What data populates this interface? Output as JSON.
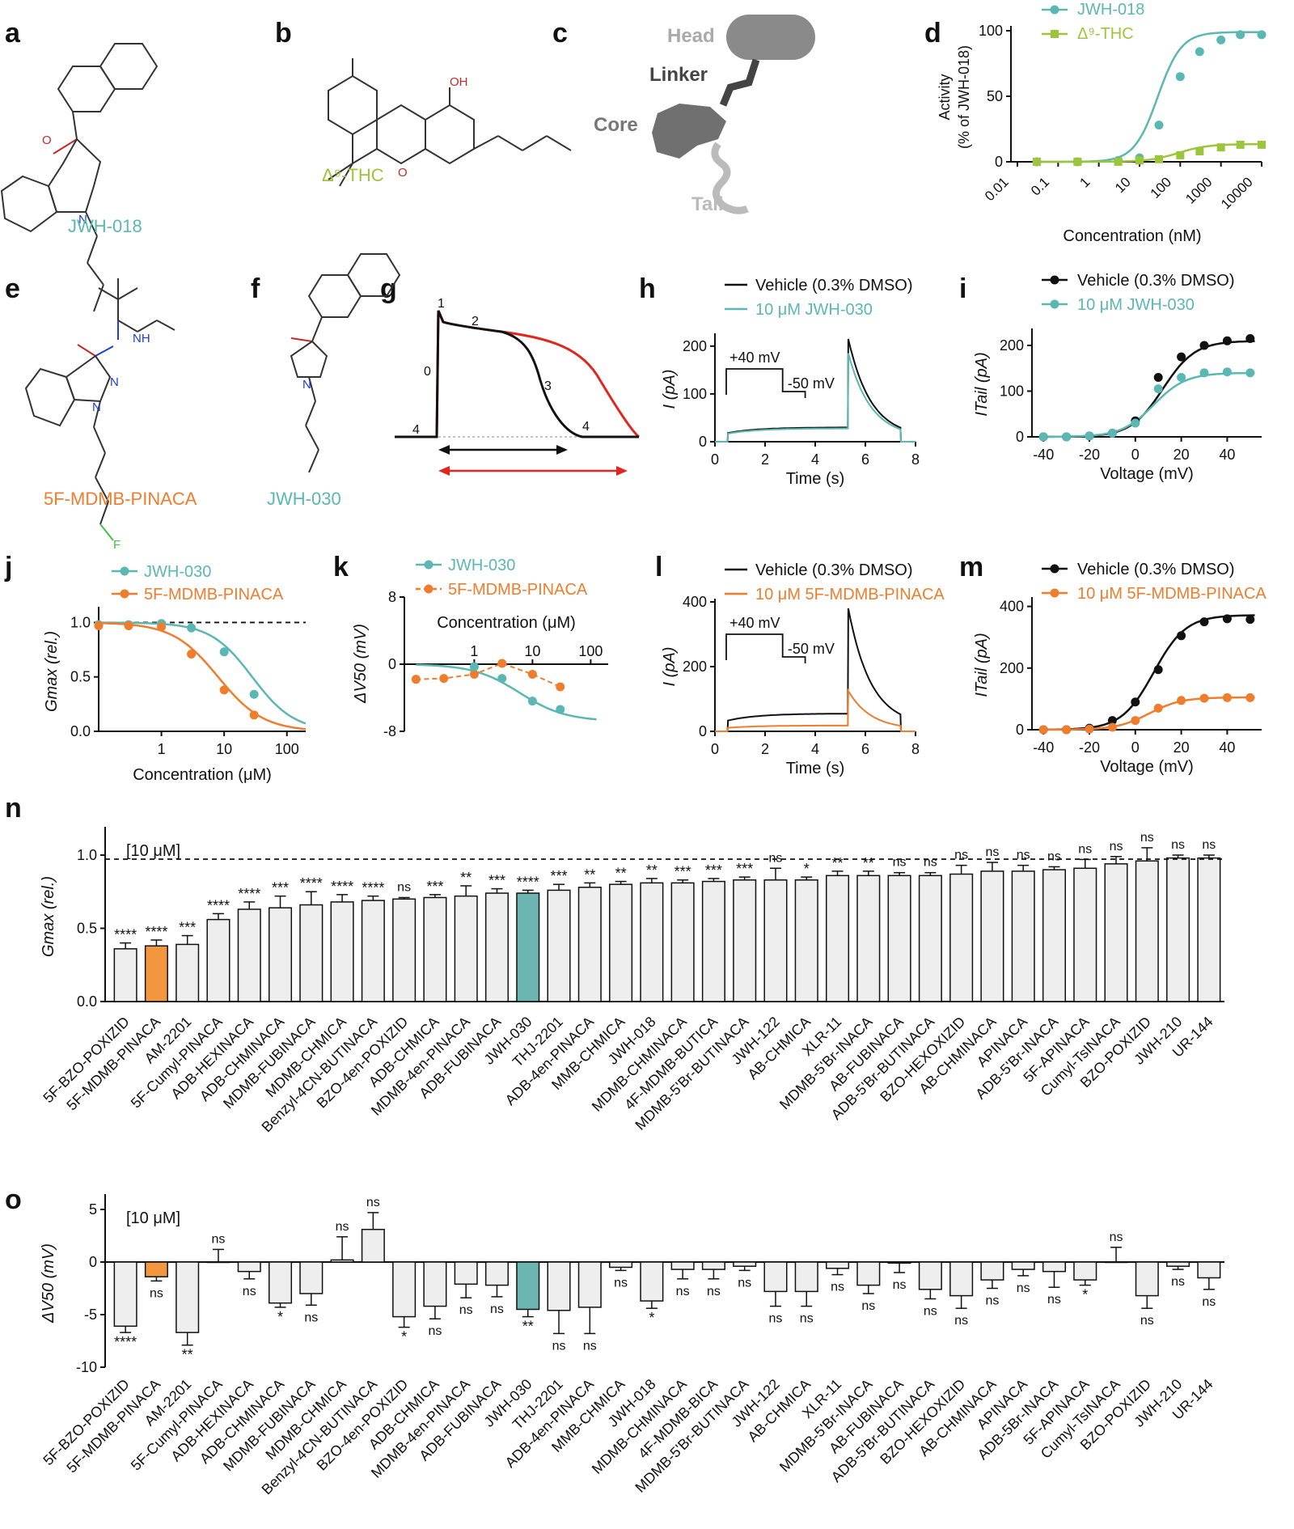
{
  "colors": {
    "teal": "#5bb7b2",
    "orange": "#ef7d2e",
    "green": "#9dc53b",
    "black": "#111111",
    "red": "#e0261f",
    "bar_gray": "#eeeeee",
    "bar_teal": "#6cb5b0",
    "bar_orange": "#f2973f"
  },
  "panel_letters": {
    "a": "a",
    "b": "b",
    "c": "c",
    "d": "d",
    "e": "e",
    "f": "f",
    "g": "g",
    "h": "h",
    "i": "i",
    "j": "j",
    "k": "k",
    "l": "l",
    "m": "m",
    "n": "n",
    "o": "o"
  },
  "structures": {
    "a_label": "JWH-018",
    "b_label": "Δ⁹-THC",
    "b_oh": "OH",
    "c_head": "Head",
    "c_linker": "Linker",
    "c_core": "Core",
    "c_tail": "Tail",
    "e_label": "5F-MDMB-PINACA",
    "e_nh": "NH",
    "e_n1": "N",
    "e_n2": "N",
    "e_f": "F",
    "f_label": "JWH-030",
    "n_atom": "N"
  },
  "charts": {
    "d": {
      "type": "line",
      "ylabel1": "Activity",
      "ylabel2": "(% of JWH-018)",
      "xlabel": "Concentration (nM)",
      "xticks": [
        "0.01",
        "0.1",
        "1",
        "10",
        "100",
        "1000",
        "10000"
      ],
      "yticks": [
        "0",
        "50",
        "100"
      ],
      "series": [
        {
          "name": "JWH-018",
          "x": [
            0.03,
            0.3,
            3,
            10,
            30,
            100,
            300,
            1000,
            3000,
            10000
          ],
          "y": [
            0,
            0,
            1,
            3,
            28,
            65,
            84,
            93,
            97,
            97
          ]
        },
        {
          "name": "Δ⁹-THC",
          "x": [
            0.03,
            0.3,
            3,
            10,
            30,
            100,
            300,
            1000,
            3000,
            10000
          ],
          "y": [
            0,
            0,
            0,
            1,
            2,
            5,
            8,
            11,
            13,
            13
          ]
        }
      ]
    },
    "g": {
      "labels": [
        "0",
        "1",
        "2",
        "3",
        "4",
        "4"
      ]
    },
    "h": {
      "type": "line",
      "ylabel": "I (pA)",
      "xlabel": "Time (s)",
      "xticks": [
        "0",
        "2",
        "4",
        "6",
        "8"
      ],
      "yticks": [
        "0",
        "100",
        "200"
      ],
      "legend": [
        "Vehicle (0.3% DMSO)",
        "10 μM JWH-030"
      ],
      "protocol": [
        "+40 mV",
        "-50 mV"
      ]
    },
    "i": {
      "type": "line",
      "ylabel": "ITail (pA)",
      "xlabel": "Voltage (mV)",
      "xticks": [
        "-40",
        "-20",
        "0",
        "20",
        "40"
      ],
      "yticks": [
        "0",
        "100",
        "200"
      ],
      "series": [
        {
          "name": "Vehicle (0.3% DMSO)",
          "x": [
            -40,
            -30,
            -20,
            -10,
            0,
            10,
            20,
            30,
            40,
            50
          ],
          "y": [
            0,
            0,
            2,
            8,
            35,
            130,
            175,
            200,
            210,
            215
          ]
        },
        {
          "name": "10 μM JWH-030",
          "x": [
            -40,
            -30,
            -20,
            -10,
            0,
            10,
            20,
            30,
            40,
            50
          ],
          "y": [
            0,
            0,
            2,
            8,
            30,
            105,
            130,
            140,
            142,
            140
          ]
        }
      ]
    },
    "j": {
      "type": "line",
      "ylabel": "Gmax (rel.)",
      "xlabel": "Concentration (μM)",
      "xticks": [
        "1",
        "10",
        "100"
      ],
      "yticks": [
        "0.0",
        "0.5",
        "1.0"
      ],
      "series": [
        {
          "name": "JWH-030",
          "x": [
            0.1,
            0.3,
            1,
            3,
            10,
            30
          ],
          "y": [
            0.98,
            0.98,
            0.99,
            0.95,
            0.73,
            0.34
          ]
        },
        {
          "name": "5F-MDMB-PINACA",
          "x": [
            0.1,
            0.3,
            1,
            3,
            10,
            30
          ],
          "y": [
            0.97,
            0.97,
            0.96,
            0.71,
            0.38,
            0.15
          ]
        }
      ]
    },
    "k": {
      "type": "line",
      "ylabel": "ΔV50 (mV)",
      "xlabel": "Concentration (μM)",
      "xticks": [
        "1",
        "10",
        "100"
      ],
      "yticks": [
        "8",
        "0",
        "-8"
      ],
      "series": [
        {
          "name": "JWH-030",
          "x": [
            1,
            3,
            10,
            30
          ],
          "y": [
            -0.3,
            -1.7,
            -4.4,
            -5.4
          ]
        },
        {
          "name": "5F-MDMB-PINACA",
          "x": [
            0.1,
            0.3,
            1,
            3,
            10,
            30
          ],
          "y": [
            -1.8,
            -1.7,
            -1.2,
            0.1,
            -1.2,
            -2.7
          ]
        }
      ]
    },
    "l": {
      "type": "line",
      "ylabel": "I (pA)",
      "xlabel": "Time (s)",
      "xticks": [
        "0",
        "2",
        "4",
        "6",
        "8"
      ],
      "yticks": [
        "0",
        "200",
        "400"
      ],
      "legend": [
        "Vehicle (0.3% DMSO)",
        "10 μM 5F-MDMB-PINACA"
      ],
      "protocol": [
        "+40 mV",
        "-50 mV"
      ]
    },
    "m": {
      "type": "line",
      "ylabel": "ITail (pA)",
      "xlabel": "Voltage (mV)",
      "xticks": [
        "-40",
        "-20",
        "0",
        "20",
        "40"
      ],
      "yticks": [
        "0",
        "200",
        "400"
      ],
      "series": [
        {
          "name": "Vehicle (0.3% DMSO)",
          "x": [
            -40,
            -30,
            -20,
            -10,
            0,
            10,
            20,
            30,
            40,
            50
          ],
          "y": [
            0,
            0,
            5,
            30,
            90,
            195,
            305,
            350,
            360,
            358
          ]
        },
        {
          "name": "10 μM 5F-MDMB-PINACA",
          "x": [
            -40,
            -30,
            -20,
            -10,
            0,
            10,
            20,
            30,
            40,
            50
          ],
          "y": [
            0,
            0,
            2,
            8,
            30,
            70,
            95,
            102,
            104,
            104
          ]
        }
      ]
    },
    "n": {
      "type": "bar",
      "ylabel": "Gmax (rel.)",
      "annotation": "[10 μM]",
      "yticks": [
        "0.0",
        "0.5",
        "1.0"
      ],
      "categories": [
        "5F-BZO-POXIZID",
        "5F-MDMB-PINACA",
        "AM-2201",
        "5F-Cumyl-PINACA",
        "ADB-HEXINACA",
        "ADB-CHMINACA",
        "MDMB-FUBINACA",
        "MDMB-CHMICA",
        "Benzyl-4CN-BUTINACA",
        "BZO-4en-POXIZID",
        "ADB-CHMICA",
        "MDMB-4en-PINACA",
        "ADB-FUBINACA",
        "JWH-030",
        "THJ-2201",
        "ADB-4en-PINACA",
        "MMB-CHMICA",
        "JWH-018",
        "MDMB-CHMINACA",
        "4F-MDMB-BUTICA",
        "MDMB-5'Br-BUTINACA",
        "JWH-122",
        "AB-CHMICA",
        "XLR-11",
        "MDMB-5'Br-INACA",
        "AB-FUBINACA",
        "ADB-5'Br-BUTINACA",
        "BZO-HEXOXIZID",
        "AB-CHMINACA",
        "APINACA",
        "ADB-5'Br-INACA",
        "5F-APINACA",
        "Cumyl-TsINACA",
        "BZO-POXIZID",
        "JWH-210",
        "UR-144"
      ],
      "values": [
        0.36,
        0.38,
        0.39,
        0.56,
        0.63,
        0.64,
        0.66,
        0.68,
        0.69,
        0.7,
        0.71,
        0.72,
        0.74,
        0.74,
        0.76,
        0.78,
        0.8,
        0.81,
        0.81,
        0.82,
        0.83,
        0.83,
        0.83,
        0.86,
        0.86,
        0.86,
        0.86,
        0.87,
        0.89,
        0.89,
        0.9,
        0.91,
        0.94,
        0.96,
        0.98,
        0.98
      ],
      "errors": [
        0.04,
        0.04,
        0.06,
        0.04,
        0.05,
        0.08,
        0.09,
        0.05,
        0.03,
        0.01,
        0.02,
        0.07,
        0.03,
        0.02,
        0.04,
        0.03,
        0.02,
        0.03,
        0.02,
        0.02,
        0.02,
        0.08,
        0.02,
        0.03,
        0.03,
        0.02,
        0.02,
        0.06,
        0.06,
        0.04,
        0.02,
        0.06,
        0.05,
        0.09,
        0.02,
        0.02
      ],
      "significance": [
        "****",
        "****",
        "***",
        "****",
        "****",
        "***",
        "****",
        "****",
        "****",
        "ns",
        "***",
        "**",
        "***",
        "****",
        "***",
        "**",
        "**",
        "**",
        "***",
        "***",
        "***",
        "ns",
        "*",
        "**",
        "**",
        "ns",
        "ns",
        "ns",
        "ns",
        "ns",
        "ns",
        "ns",
        "ns",
        "ns",
        "ns",
        "ns"
      ],
      "highlight": {
        "1": "orange",
        "13": "teal"
      }
    },
    "o": {
      "type": "bar",
      "ylabel": "ΔV50 (mV)",
      "annotation": "[10 μM]",
      "yticks": [
        "5",
        "0",
        "-5",
        "-10"
      ],
      "categories": [
        "5F-BZO-POXIZID",
        "5F-MDMB-PINACA",
        "AM-2201",
        "5F-Cumyl-PINACA",
        "ADB-HEXINACA",
        "ADB-CHMINACA",
        "MDMB-FUBINACA",
        "MDMB-CHMICA",
        "Benzyl-4CN-BUTINACA",
        "BZO-4en-POXIZID",
        "ADB-CHMICA",
        "MDMB-4en-PINACA",
        "ADB-FUBINACA",
        "JWH-030",
        "THJ-2201",
        "ADB-4en-PINACA",
        "MMB-CHMICA",
        "JWH-018",
        "MDMB-CHMINACA",
        "4F-MDMB-BICA",
        "MDMB-5'Br-BUTINACA",
        "JWH-122",
        "AB-CHMICA",
        "XLR-11",
        "MDMB-5'Br-INACA",
        "AB-FUBINACA",
        "ADB-5'Br-BUTINACA",
        "BZO-HEXOXIZID",
        "AB-CHMINACA",
        "APINACA",
        "ADB-5Br-INACA",
        "5F-APINACA",
        "Cumyl-TsINACA",
        "BZO-POXIZID",
        "JWH-210",
        "UR-144"
      ],
      "values": [
        -6.1,
        -1.4,
        -6.7,
        0,
        -0.9,
        -3.9,
        -3.0,
        0.2,
        3.1,
        -5.2,
        -4.2,
        -2.1,
        -2.2,
        -4.5,
        -4.6,
        -4.3,
        -0.5,
        -3.7,
        -0.7,
        -0.7,
        -0.4,
        -2.8,
        -2.8,
        -0.6,
        -2.2,
        -0.1,
        -2.6,
        -3.2,
        -1.7,
        -0.7,
        -0.9,
        -1.7,
        0,
        -3.2,
        -0.4,
        -1.5
      ],
      "errors": [
        0.6,
        0.4,
        1.2,
        1.2,
        0.7,
        0.4,
        1.1,
        2.2,
        1.6,
        1.0,
        1.2,
        1.3,
        1.1,
        0.7,
        2.2,
        2.5,
        0.3,
        0.7,
        0.9,
        0.9,
        0.4,
        1.4,
        1.4,
        0.6,
        0.8,
        0.9,
        0.9,
        1.2,
        0.8,
        0.6,
        1.5,
        0.5,
        1.4,
        1.2,
        0.3,
        1.1
      ],
      "significance": [
        "****",
        "ns",
        "**",
        "ns",
        "ns",
        "*",
        "ns",
        "ns",
        "ns",
        "*",
        "ns",
        "ns",
        "ns",
        "**",
        "ns",
        "ns",
        "ns",
        "*",
        "ns",
        "ns",
        "ns",
        "ns",
        "ns",
        "ns",
        "ns",
        "ns",
        "ns",
        "ns",
        "ns",
        "ns",
        "ns",
        "*",
        "ns",
        "ns",
        "ns",
        "ns"
      ],
      "highlight": {
        "1": "orange",
        "13": "teal"
      }
    }
  }
}
